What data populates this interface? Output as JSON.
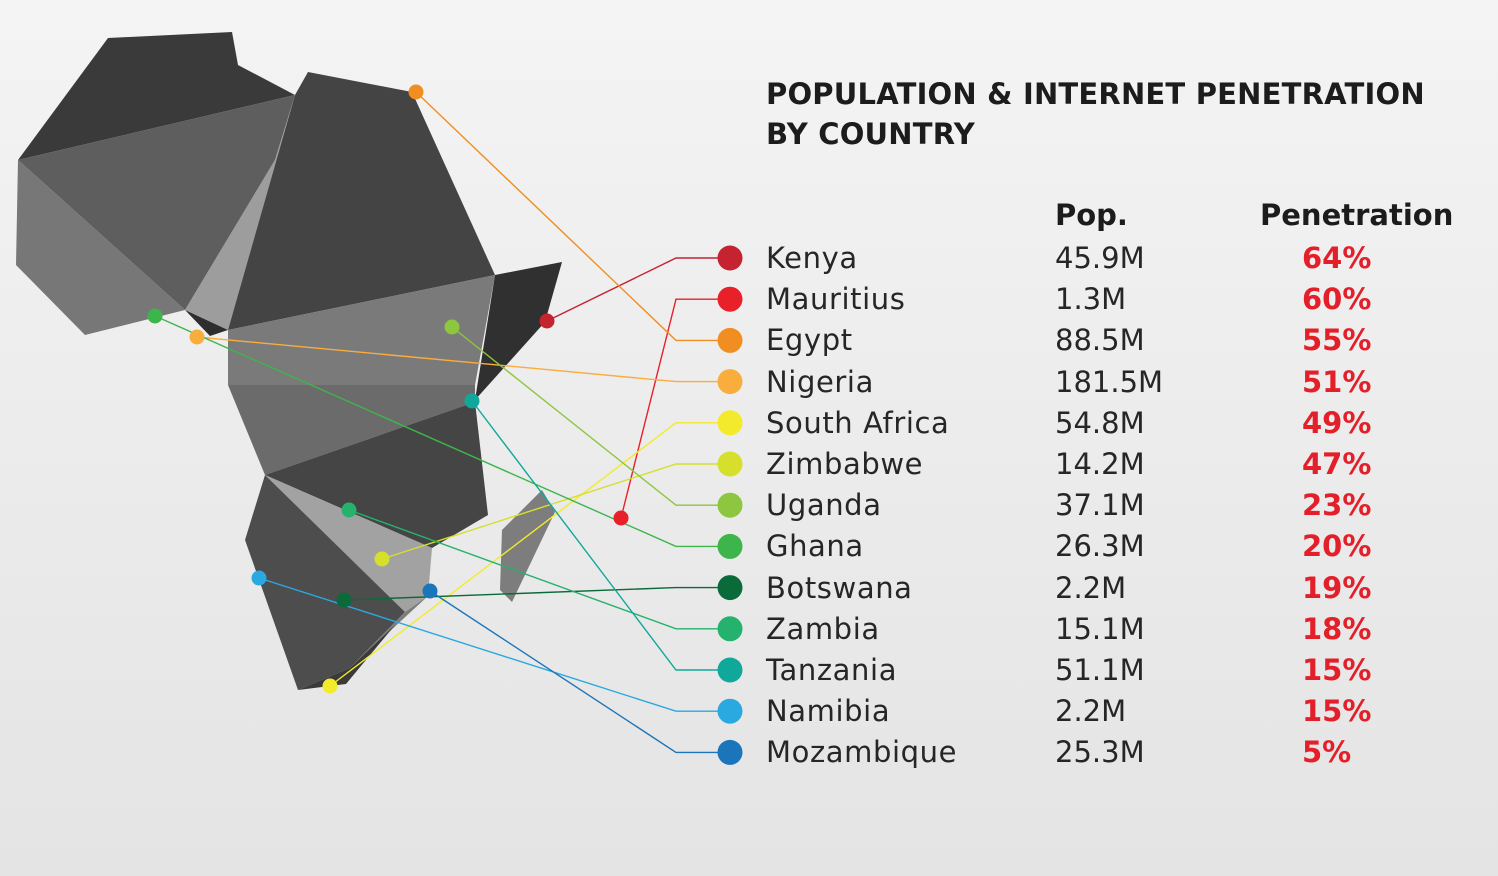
{
  "title_lines": [
    "POPULATION & INTERNET PENETRATION",
    "BY COUNTRY"
  ],
  "headers": {
    "pop": "Pop.",
    "penetration": "Penetration"
  },
  "chart_data": {
    "type": "table",
    "title": "POPULATION & INTERNET PENETRATION BY COUNTRY",
    "columns": [
      "Pop.",
      "Penetration"
    ],
    "rows": [
      {
        "country": "Kenya",
        "pop": "45.9M",
        "penetration": "64%",
        "color": "#c4232f"
      },
      {
        "country": "Mauritius",
        "pop": "1.3M",
        "penetration": "60%",
        "color": "#e8202a"
      },
      {
        "country": "Egypt",
        "pop": "88.5M",
        "penetration": "55%",
        "color": "#f18e22"
      },
      {
        "country": "Nigeria",
        "pop": "181.5M",
        "penetration": "51%",
        "color": "#f9ad3c"
      },
      {
        "country": "South Africa",
        "pop": "54.8M",
        "penetration": "49%",
        "color": "#f3ea2b"
      },
      {
        "country": "Zimbabwe",
        "pop": "14.2M",
        "penetration": "47%",
        "color": "#d6df2b"
      },
      {
        "country": "Uganda",
        "pop": "37.1M",
        "penetration": "23%",
        "color": "#8dc63f"
      },
      {
        "country": "Ghana",
        "pop": "26.3M",
        "penetration": "20%",
        "color": "#3db54a"
      },
      {
        "country": "Botswana",
        "pop": "2.2M",
        "penetration": "19%",
        "color": "#0b6a3a"
      },
      {
        "country": "Zambia",
        "pop": "15.1M",
        "penetration": "18%",
        "color": "#25b26d"
      },
      {
        "country": "Tanzania",
        "pop": "51.1M",
        "penetration": "15%",
        "color": "#10a89b"
      },
      {
        "country": "Namibia",
        "pop": "2.2M",
        "penetration": "15%",
        "color": "#2aa8e0"
      },
      {
        "country": "Mozambique",
        "pop": "25.3M",
        "penetration": "5%",
        "color": "#1b75bb"
      }
    ]
  }
}
